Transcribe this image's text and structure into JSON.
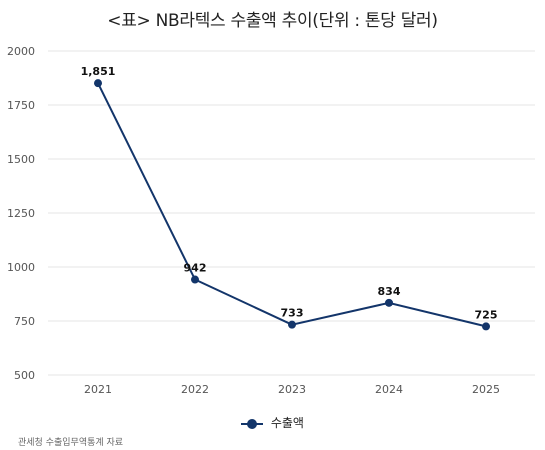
{
  "title": "<표> NB라텍스 수출액 추이(단위 : 톤당 달러)",
  "source": "관세청 수출입무역통계 자료",
  "chart_data": {
    "type": "line",
    "title": "<표> NB라텍스 수출액 추이(단위 : 톤당 달러)",
    "x": [
      "2021",
      "2022",
      "2023",
      "2024",
      "2025"
    ],
    "series": [
      {
        "name": "수출액",
        "values": [
          1851,
          942,
          733,
          834,
          725
        ],
        "color": "#13356a"
      }
    ],
    "data_labels": [
      "1,851",
      "942",
      "733",
      "834",
      "725"
    ],
    "ylim": [
      500,
      2000
    ],
    "yticks": [
      "500",
      "750",
      "1000",
      "1250",
      "1500",
      "1750",
      "2000"
    ],
    "xlabel": "",
    "ylabel": "",
    "grid": true,
    "legend_position": "bottom-center"
  }
}
